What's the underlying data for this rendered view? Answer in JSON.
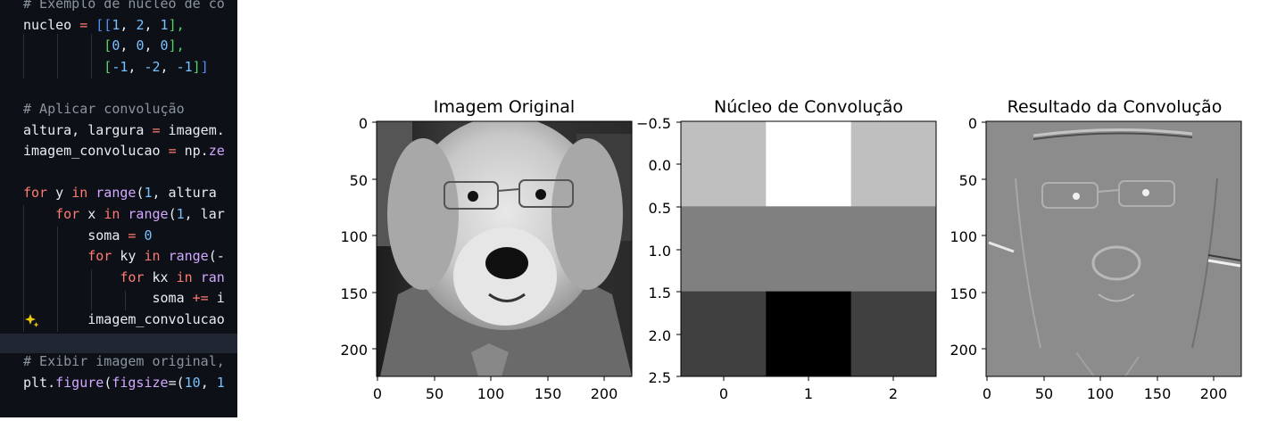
{
  "editor": {
    "lines": [
      {
        "tokens": [
          {
            "t": "# Exemplo de núcleo de co",
            "c": "c-comment"
          }
        ]
      },
      {
        "tokens": [
          {
            "t": "nucleo ",
            "c": ""
          },
          {
            "t": "=",
            "c": "c-op"
          },
          {
            "t": " ",
            "c": ""
          },
          {
            "t": "[[",
            "c": "c-brk1"
          },
          {
            "t": "1",
            "c": "c-num"
          },
          {
            "t": ", ",
            "c": ""
          },
          {
            "t": "2",
            "c": "c-num"
          },
          {
            "t": ", ",
            "c": ""
          },
          {
            "t": "1",
            "c": "c-num"
          },
          {
            "t": "],",
            "c": "c-brk2"
          }
        ]
      },
      {
        "tokens": [
          {
            "t": "          [",
            "c": "c-brk2"
          },
          {
            "t": "0",
            "c": "c-num"
          },
          {
            "t": ", ",
            "c": ""
          },
          {
            "t": "0",
            "c": "c-num"
          },
          {
            "t": ", ",
            "c": ""
          },
          {
            "t": "0",
            "c": "c-num"
          },
          {
            "t": "],",
            "c": "c-brk2"
          }
        ]
      },
      {
        "tokens": [
          {
            "t": "          [",
            "c": "c-brk2"
          },
          {
            "t": "-1",
            "c": "c-num"
          },
          {
            "t": ", ",
            "c": ""
          },
          {
            "t": "-2",
            "c": "c-num"
          },
          {
            "t": ", ",
            "c": ""
          },
          {
            "t": "-1",
            "c": "c-num"
          },
          {
            "t": "]",
            "c": "c-brk2"
          },
          {
            "t": "]",
            "c": "c-brk1"
          }
        ]
      },
      {
        "tokens": []
      },
      {
        "tokens": [
          {
            "t": "# Aplicar convolução",
            "c": "c-comment"
          }
        ]
      },
      {
        "tokens": [
          {
            "t": "altura, largura ",
            "c": ""
          },
          {
            "t": "=",
            "c": "c-op"
          },
          {
            "t": " imagem.",
            "c": ""
          }
        ]
      },
      {
        "tokens": [
          {
            "t": "imagem_convolucao ",
            "c": ""
          },
          {
            "t": "=",
            "c": "c-op"
          },
          {
            "t": " np.",
            "c": ""
          },
          {
            "t": "ze",
            "c": "c-fn"
          }
        ]
      },
      {
        "tokens": []
      },
      {
        "tokens": [
          {
            "t": "for",
            "c": "c-kw"
          },
          {
            "t": " y ",
            "c": ""
          },
          {
            "t": "in",
            "c": "c-kw"
          },
          {
            "t": " ",
            "c": ""
          },
          {
            "t": "range",
            "c": "c-fn"
          },
          {
            "t": "(",
            "c": ""
          },
          {
            "t": "1",
            "c": "c-num"
          },
          {
            "t": ", altura ",
            "c": ""
          }
        ]
      },
      {
        "tokens": [
          {
            "t": "    for",
            "c": "c-kw"
          },
          {
            "t": " x ",
            "c": ""
          },
          {
            "t": "in",
            "c": "c-kw"
          },
          {
            "t": " ",
            "c": ""
          },
          {
            "t": "range",
            "c": "c-fn"
          },
          {
            "t": "(",
            "c": ""
          },
          {
            "t": "1",
            "c": "c-num"
          },
          {
            "t": ", lar",
            "c": ""
          }
        ]
      },
      {
        "tokens": [
          {
            "t": "        soma ",
            "c": ""
          },
          {
            "t": "=",
            "c": "c-op"
          },
          {
            "t": " ",
            "c": ""
          },
          {
            "t": "0",
            "c": "c-num"
          }
        ]
      },
      {
        "tokens": [
          {
            "t": "        for",
            "c": "c-kw"
          },
          {
            "t": " ky ",
            "c": ""
          },
          {
            "t": "in",
            "c": "c-kw"
          },
          {
            "t": " ",
            "c": ""
          },
          {
            "t": "range",
            "c": "c-fn"
          },
          {
            "t": "(-",
            "c": ""
          }
        ]
      },
      {
        "tokens": [
          {
            "t": "            for",
            "c": "c-kw"
          },
          {
            "t": " kx ",
            "c": ""
          },
          {
            "t": "in",
            "c": "c-kw"
          },
          {
            "t": " ",
            "c": ""
          },
          {
            "t": "ran",
            "c": "c-fn"
          }
        ]
      },
      {
        "tokens": [
          {
            "t": "                soma ",
            "c": ""
          },
          {
            "t": "+=",
            "c": "c-op"
          },
          {
            "t": " i",
            "c": ""
          }
        ]
      },
      {
        "tokens": [
          {
            "t": "        imagem_convolucao",
            "c": ""
          }
        ]
      },
      {
        "tokens": []
      },
      {
        "tokens": [
          {
            "t": "# Exibir imagem original,",
            "c": "c-comment"
          }
        ]
      },
      {
        "tokens": [
          {
            "t": "plt.",
            "c": ""
          },
          {
            "t": "figure",
            "c": "c-fn"
          },
          {
            "t": "(",
            "c": ""
          },
          {
            "t": "figsize",
            "c": "c-fn"
          },
          {
            "t": "=(",
            "c": ""
          },
          {
            "t": "10",
            "c": "c-num"
          },
          {
            "t": ", ",
            "c": ""
          },
          {
            "t": "1",
            "c": "c-num"
          }
        ]
      }
    ],
    "sparkle_icon": "sparkle-icon"
  },
  "figure": {
    "panels": [
      {
        "title": "Imagem Original",
        "xticks": [
          "0",
          "50",
          "100",
          "150",
          "200"
        ],
        "yticks": [
          "0",
          "50",
          "100",
          "150",
          "200"
        ],
        "image": "grayscale photo of a golden retriever wearing glasses and a suit"
      },
      {
        "title": "Núcleo de Convolução",
        "xticks": [
          "0",
          "1",
          "2"
        ],
        "yticks": [
          "−0.5",
          "0.0",
          "0.5",
          "1.0",
          "1.5",
          "2.0",
          "2.5"
        ]
      },
      {
        "title": "Resultado da Convolução",
        "xticks": [
          "0",
          "50",
          "100",
          "150",
          "200"
        ],
        "yticks": [
          "0",
          "50",
          "100",
          "150",
          "200"
        ],
        "image": "edge-detected grayscale image of the dog"
      }
    ]
  },
  "chart_data": [
    {
      "type": "heatmap",
      "title": "Núcleo de Convolução",
      "x": [
        0,
        1,
        2
      ],
      "y": [
        0,
        1,
        2
      ],
      "values": [
        [
          1,
          2,
          1
        ],
        [
          0,
          0,
          0
        ],
        [
          -1,
          -2,
          -1
        ]
      ],
      "xlim": [
        -0.5,
        2.5
      ],
      "ylim": [
        2.5,
        -0.5
      ],
      "colormap": "gray"
    }
  ]
}
